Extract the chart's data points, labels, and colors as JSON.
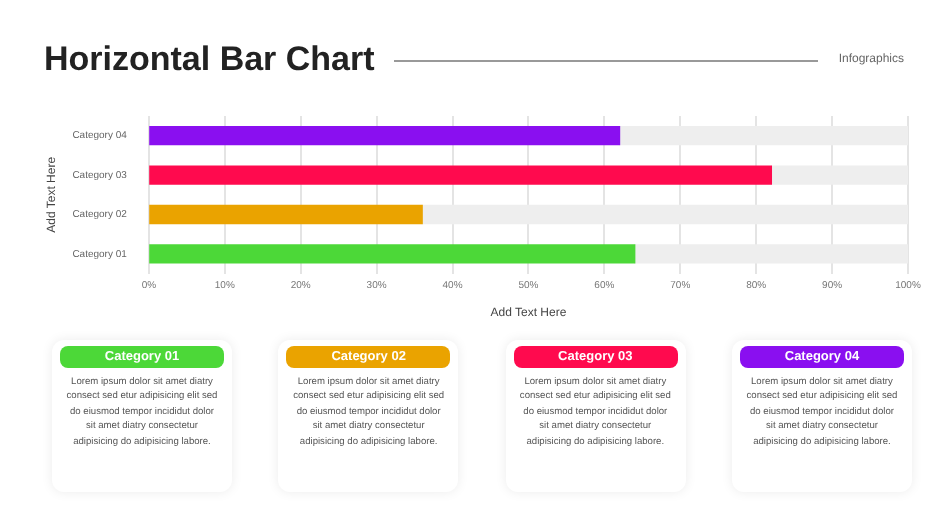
{
  "chart_data": [
    {
      "type": "bar",
      "orientation": "horizontal",
      "stacked": true,
      "title": "Horizontal Bar Chart",
      "annotations": [
        "Infographics"
      ],
      "xlabel": "Add Text Here",
      "ylabel": "Add Text Here",
      "categories": [
        "Category 04",
        "Category 03",
        "Category 02",
        "Category 01"
      ],
      "series": [
        {
          "colors": [
            "#8a0ff0",
            "#ff0a4e",
            "#eaa300",
            "#4cd838"
          ],
          "values": [
            62,
            82,
            36,
            64
          ]
        },
        {
          "color": "#eeeeee",
          "values": [
            38,
            18,
            64,
            36
          ]
        }
      ],
      "xlim": [
        0,
        100
      ],
      "xticks": [
        {
          "value": 0,
          "label": "0%"
        },
        {
          "value": 10,
          "label": "10%"
        },
        {
          "value": 20,
          "label": "20%"
        },
        {
          "value": 30,
          "label": "30%"
        },
        {
          "value": 40,
          "label": "40%"
        },
        {
          "value": 50,
          "label": "50%"
        },
        {
          "value": 60,
          "label": "60%"
        },
        {
          "value": 70,
          "label": "70%"
        },
        {
          "value": 80,
          "label": "80%"
        },
        {
          "value": 90,
          "label": "90%"
        },
        {
          "value": 100,
          "label": "100%"
        }
      ],
      "grid": "x"
    },
    {
      "type": "other",
      "categories": [
        "Category 01",
        "Category 02",
        "Category 03",
        "Category 04"
      ],
      "colors": [
        "#4cd838",
        "#eaa300",
        "#ff0a4e",
        "#8a0ff0"
      ],
      "annotations": [
        "Lorem ipsum dolor sit amet diatry consect sed etur adipisicing elit sed do eiusmod tempor incididut dolor sit amet diatry consectetur adipisicing do adipisicing labore.",
        "Lorem ipsum dolor sit amet diatry consect sed etur adipisicing elit sed do eiusmod tempor incididut dolor sit amet diatry consectetur adipisicing do adipisicing labore.",
        "Lorem ipsum dolor sit amet diatry consect sed etur adipisicing elit sed do eiusmod tempor incididut dolor sit amet diatry consectetur adipisicing do adipisicing labore.",
        "Lorem ipsum dolor sit amet diatry consect sed etur adipisicing elit sed do eiusmod tempor incididut dolor sit amet diatry consectetur adipisicing do adipisicing labore."
      ]
    }
  ]
}
